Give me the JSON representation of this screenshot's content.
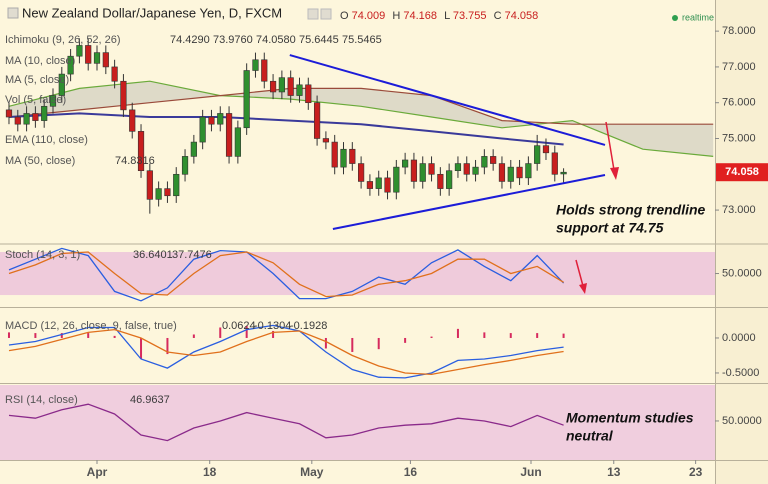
{
  "chart_data": [
    {
      "type": "candlestick",
      "title": "New Zealand Dollar/Japanese Yen, D, FXCM",
      "ohlc_letters": [
        "O",
        "H",
        "L",
        "C"
      ],
      "status": "realtime",
      "up_color": "#2f8f2f",
      "down_color": "#c81e1e",
      "x": [
        -10,
        -9,
        -8,
        -7,
        -6,
        -5,
        -4,
        -3,
        -2,
        -1,
        0,
        1,
        2,
        3,
        4,
        5,
        6,
        7,
        8,
        9,
        10,
        11,
        12,
        13,
        14,
        15,
        16,
        17,
        18,
        19,
        20,
        21,
        22,
        23,
        24,
        25,
        26,
        27,
        28,
        29,
        30,
        31,
        32,
        33,
        34,
        35,
        36,
        37,
        38,
        39,
        40,
        41,
        42,
        43,
        44,
        45,
        46,
        47,
        48,
        49,
        50,
        51,
        52,
        53
      ],
      "candles": [
        [
          75.8,
          76.0,
          75.4,
          75.6
        ],
        [
          75.6,
          75.8,
          75.2,
          75.4
        ],
        [
          75.4,
          75.9,
          75.2,
          75.7
        ],
        [
          75.7,
          75.9,
          75.3,
          75.5
        ],
        [
          75.5,
          76.1,
          75.3,
          75.9
        ],
        [
          75.9,
          76.4,
          75.7,
          76.2
        ],
        [
          76.2,
          77.0,
          76.0,
          76.8
        ],
        [
          76.8,
          77.5,
          76.6,
          77.3
        ],
        [
          77.3,
          77.8,
          77.1,
          77.6
        ],
        [
          77.6,
          77.8,
          76.9,
          77.1
        ],
        [
          77.1,
          77.6,
          76.9,
          77.4
        ],
        [
          77.4,
          77.6,
          76.8,
          77.0
        ],
        [
          77.0,
          77.2,
          76.4,
          76.6
        ],
        [
          76.6,
          76.8,
          75.6,
          75.8
        ],
        [
          75.8,
          76.0,
          75.0,
          75.2
        ],
        [
          75.2,
          75.4,
          73.9,
          74.1
        ],
        [
          74.1,
          74.3,
          72.9,
          73.3
        ],
        [
          73.3,
          73.8,
          73.1,
          73.6
        ],
        [
          73.6,
          73.8,
          73.2,
          73.4
        ],
        [
          73.4,
          74.2,
          73.2,
          74.0
        ],
        [
          74.0,
          74.7,
          73.8,
          74.5
        ],
        [
          74.5,
          75.1,
          74.3,
          74.9
        ],
        [
          74.9,
          75.8,
          74.7,
          75.6
        ],
        [
          75.6,
          75.8,
          75.2,
          75.4
        ],
        [
          75.4,
          75.9,
          75.2,
          75.7
        ],
        [
          75.7,
          75.9,
          74.3,
          74.5
        ],
        [
          74.5,
          75.5,
          74.3,
          75.3
        ],
        [
          75.3,
          77.1,
          75.1,
          76.9
        ],
        [
          76.9,
          77.4,
          76.7,
          77.2
        ],
        [
          77.2,
          77.4,
          76.4,
          76.6
        ],
        [
          76.6,
          76.8,
          76.1,
          76.3
        ],
        [
          76.3,
          76.9,
          76.1,
          76.7
        ],
        [
          76.7,
          76.9,
          76.0,
          76.2
        ],
        [
          76.2,
          76.7,
          76.0,
          76.5
        ],
        [
          76.5,
          76.7,
          75.8,
          76.0
        ],
        [
          76.0,
          76.2,
          74.8,
          75.0
        ],
        [
          75.0,
          75.2,
          74.7,
          74.9
        ],
        [
          74.9,
          75.1,
          74.0,
          74.2
        ],
        [
          74.2,
          74.9,
          74.0,
          74.7
        ],
        [
          74.7,
          74.9,
          74.1,
          74.3
        ],
        [
          74.3,
          74.5,
          73.6,
          73.8
        ],
        [
          73.8,
          74.0,
          73.4,
          73.6
        ],
        [
          73.6,
          74.1,
          73.4,
          73.9
        ],
        [
          73.9,
          74.1,
          73.3,
          73.5
        ],
        [
          73.5,
          74.4,
          73.3,
          74.2
        ],
        [
          74.2,
          74.6,
          74.0,
          74.4
        ],
        [
          74.4,
          74.6,
          73.6,
          73.8
        ],
        [
          73.8,
          74.5,
          73.6,
          74.3
        ],
        [
          74.3,
          74.5,
          73.8,
          74.0
        ],
        [
          74.0,
          74.2,
          73.4,
          73.6
        ],
        [
          73.6,
          74.3,
          73.4,
          74.1
        ],
        [
          74.1,
          74.5,
          73.9,
          74.3
        ],
        [
          74.3,
          74.5,
          73.8,
          74.0
        ],
        [
          74.0,
          74.4,
          73.8,
          74.2
        ],
        [
          74.2,
          74.7,
          74.0,
          74.5
        ],
        [
          74.5,
          74.7,
          74.1,
          74.3
        ],
        [
          74.3,
          74.5,
          73.6,
          73.8
        ],
        [
          73.8,
          74.4,
          73.6,
          74.2
        ],
        [
          74.2,
          74.4,
          73.7,
          73.9
        ],
        [
          73.9,
          74.5,
          73.7,
          74.3
        ],
        [
          74.3,
          75.1,
          74.1,
          74.8
        ],
        [
          74.8,
          75.0,
          74.4,
          74.6
        ],
        [
          74.6,
          74.8,
          73.8,
          74.0
        ],
        [
          74.009,
          74.168,
          73.755,
          74.058
        ]
      ],
      "legend_entries": [
        "Ichimoku (9, 26, 52, 26)",
        "MA (10, close)",
        "MA (5, close)",
        "Vol (5, false)",
        "EMA (110, close)"
      ],
      "legend_values": [
        {
          "value": 74.429,
          "label": "74.4290"
        },
        {
          "value": 73.976,
          "label": "73.9760"
        },
        {
          "value": 74.058,
          "label": "74.0580"
        },
        {
          "value": 75.6445,
          "label": "75.6445"
        },
        {
          "value": 75.5465,
          "label": "75.5465"
        }
      ],
      "legend_value_colors": [
        "#c81e1e",
        "#c81e1e",
        "#2f8f2f",
        "#2f8f2f",
        "#c81e1e"
      ],
      "cloud": {
        "x": [
          -10,
          -2,
          6,
          14,
          22,
          30,
          38,
          46,
          54,
          62,
          70
        ],
        "span_a": [
          75.9,
          76.4,
          76.6,
          76.2,
          76.1,
          75.9,
          75.6,
          75.3,
          75.5,
          74.7,
          74.5
        ],
        "span_b": [
          75.6,
          75.8,
          76.0,
          76.2,
          76.4,
          76.4,
          76.2,
          75.5,
          75.4,
          75.4,
          75.4
        ],
        "color_a": "#6aaa3a",
        "color_b": "#9a4a3a",
        "fill": "#b8b8b0"
      },
      "ma": {
        "name": "MA (50, close)",
        "color": "#3a3a9a",
        "x": [
          -10,
          -2,
          6,
          14,
          22,
          30,
          38,
          46,
          53
        ],
        "values": [
          75.6,
          75.7,
          75.6,
          75.6,
          75.5,
          75.4,
          75.2,
          75.0,
          74.8316
        ]
      },
      "trendlines": [
        {
          "x": [
            21.9,
            57.7
          ],
          "values": [
            77.33,
            74.82
          ]
        },
        {
          "x": [
            26.8,
            57.7
          ],
          "values": [
            72.47,
            73.98
          ]
        }
      ],
      "trendline_color": "#1c1cd8",
      "annotation": [
        "Holds strong trendline",
        "support at 74.75"
      ],
      "ylim": [
        72.08,
        78.87
      ],
      "yticks": [
        {
          "value": 78,
          "label": "78.000"
        },
        {
          "value": 77,
          "label": "77.000"
        },
        {
          "value": 76,
          "label": "76.000"
        },
        {
          "value": 75,
          "label": "75.000"
        },
        {
          "value": 73,
          "label": "73.000"
        }
      ]
    },
    {
      "type": "line",
      "title": "Stoch (14, 3, 1)",
      "x": [
        -10,
        -7,
        -4,
        -1,
        2,
        5,
        8,
        11,
        14,
        17,
        20,
        23,
        26,
        29,
        32,
        35,
        38,
        41,
        44,
        47,
        50,
        53
      ],
      "series": [
        {
          "color": "#2a5ee0",
          "values": [
            55,
            70,
            85,
            75,
            25,
            12,
            30,
            70,
            82,
            80,
            50,
            15,
            15,
            25,
            45,
            35,
            65,
            83,
            60,
            40,
            75,
            36.6401
          ]
        },
        {
          "color": "#e0701c",
          "values": [
            50,
            62,
            78,
            80,
            50,
            22,
            20,
            50,
            75,
            80,
            65,
            35,
            18,
            20,
            35,
            40,
            50,
            70,
            70,
            50,
            60,
            37.7476
          ]
        }
      ],
      "band": [
        20,
        80
      ],
      "ylim": [
        4.7,
        89.8
      ],
      "yticks": [
        {
          "value": 50,
          "label": "50.0000"
        }
      ]
    },
    {
      "type": "macd",
      "title": "MACD (12, 26, close, 9, false, true)",
      "x": [
        -10,
        -7,
        -4,
        -1,
        2,
        5,
        8,
        11,
        14,
        17,
        20,
        23,
        26,
        29,
        32,
        35,
        38,
        41,
        44,
        47,
        50,
        53
      ],
      "histogram": {
        "color": "#d62a5e",
        "values": [
          0.08,
          0.07,
          0.07,
          0.07,
          0.03,
          -0.3,
          -0.23,
          0.05,
          0.15,
          0.17,
          0.1,
          0,
          -0.15,
          -0.2,
          -0.16,
          -0.07,
          0.02,
          0.13,
          0.08,
          0.07,
          0.07,
          0.0624
        ]
      },
      "series": [
        {
          "color": "#2a5ee0",
          "values": [
            -0.1,
            -0.05,
            0.05,
            0.15,
            0.15,
            -0.3,
            -0.43,
            -0.2,
            -0.05,
            0.12,
            0.18,
            0.1,
            -0.2,
            -0.45,
            -0.56,
            -0.57,
            -0.5,
            -0.32,
            -0.3,
            -0.25,
            -0.18,
            -0.1304
          ]
        },
        {
          "color": "#e0701c",
          "values": [
            -0.18,
            -0.12,
            -0.02,
            0.08,
            0.12,
            0.0,
            -0.2,
            -0.25,
            -0.2,
            -0.05,
            0.08,
            0.1,
            -0.05,
            -0.25,
            -0.4,
            -0.5,
            -0.52,
            -0.45,
            -0.38,
            -0.32,
            -0.25,
            -0.1928
          ]
        }
      ],
      "ylim": [
        -0.629,
        0.414
      ],
      "yticks": [
        {
          "value": 0,
          "label": "0.0000"
        },
        {
          "value": -0.5,
          "label": "-0.5000"
        }
      ]
    },
    {
      "type": "line",
      "title": "RSI (14, close)",
      "x": [
        -10,
        -7,
        -4,
        -1,
        2,
        5,
        8,
        11,
        14,
        17,
        20,
        23,
        26,
        29,
        32,
        35,
        38,
        41,
        44,
        47,
        50,
        53
      ],
      "series": [
        {
          "color": "#8a2a8a",
          "values": [
            54,
            52,
            58,
            62,
            55,
            40,
            36,
            45,
            50,
            56,
            52,
            48,
            38,
            40,
            45,
            47,
            48,
            52,
            50,
            46,
            54,
            46.9637
          ]
        }
      ],
      "annotation": [
        "Momentum studies",
        "neutral"
      ],
      "ylim": [
        22.1,
        75.7
      ],
      "yticks": [
        {
          "value": 50,
          "label": "50.0000"
        }
      ],
      "xlim": [
        -11.02,
        70.2
      ],
      "xticks": [
        {
          "value": 0,
          "label": "Apr"
        },
        {
          "value": 12.8,
          "label": "18"
        },
        {
          "value": 24.4,
          "label": "May"
        },
        {
          "value": 35.6,
          "label": "16"
        },
        {
          "value": 49.3,
          "label": "Jun"
        },
        {
          "value": 58.7,
          "label": "13"
        },
        {
          "value": 68,
          "label": "23"
        }
      ]
    }
  ]
}
